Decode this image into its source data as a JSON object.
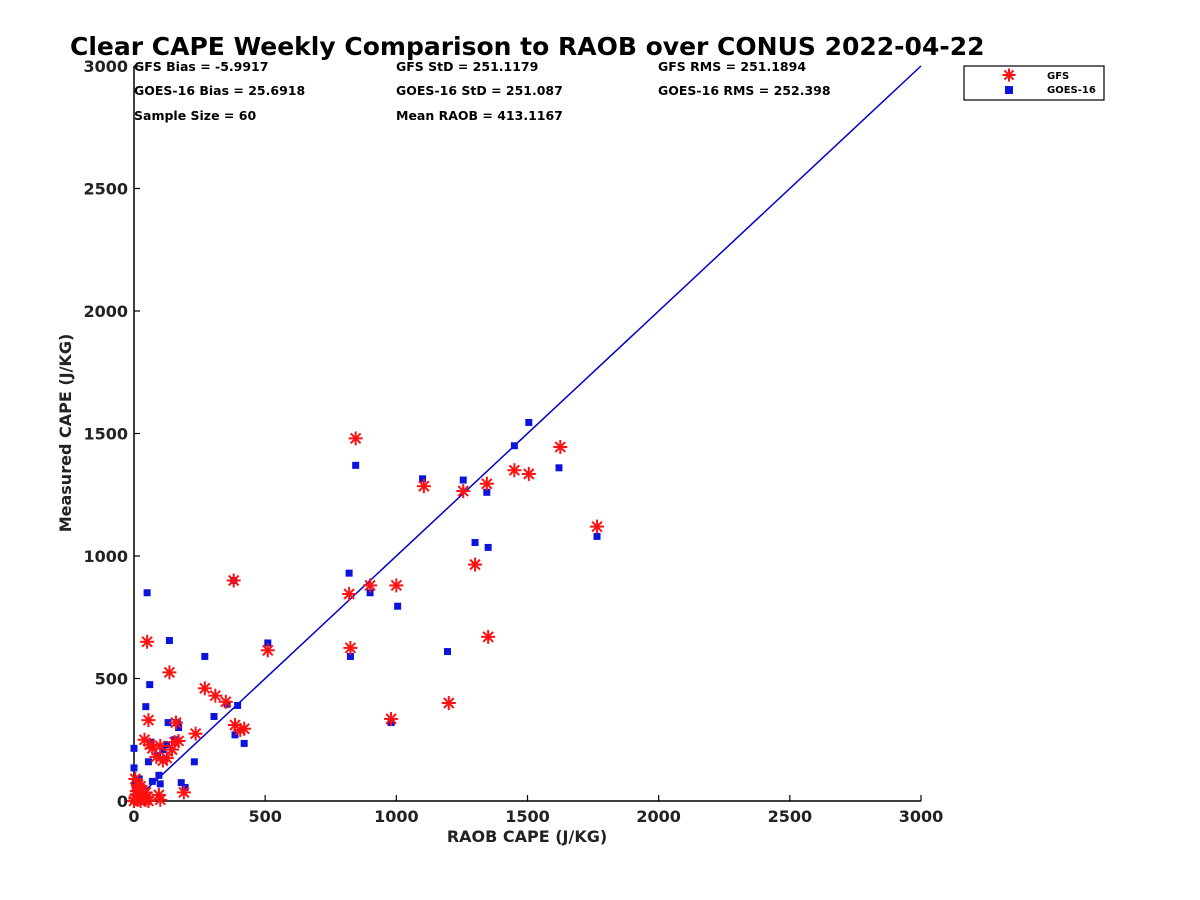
{
  "chart_data": {
    "type": "scatter",
    "title": "Clear CAPE Weekly Comparison to RAOB over CONUS 2022-04-22",
    "xlabel": "RAOB CAPE (J/KG)",
    "ylabel": "Measured CAPE (J/KG)",
    "xlim": [
      0,
      3000
    ],
    "ylim": [
      0,
      3000
    ],
    "xticks": [
      "0",
      "500",
      "1000",
      "1500",
      "2000",
      "2500",
      "3000"
    ],
    "yticks": [
      "0",
      "500",
      "1000",
      "1500",
      "2000",
      "2500",
      "3000"
    ],
    "grid": false,
    "legend_position": "top-right",
    "one_to_one_line": {
      "x": [
        0,
        3000
      ],
      "y": [
        0,
        3000
      ],
      "color": "#0000cc"
    },
    "stats": [
      "GFS Bias = -5.9917",
      "GFS StD = 251.1179",
      "GFS RMS = 251.1894",
      "GOES-16 Bias = 25.6918",
      "GOES-16 StD = 251.087",
      "GOES-16 RMS = 252.398",
      "Sample Size = 60",
      "Mean RAOB = 413.1167"
    ],
    "series": [
      {
        "name": "GFS",
        "marker": "asterisk",
        "color": "#ff1010",
        "points": [
          [
            0,
            0
          ],
          [
            5,
            10
          ],
          [
            10,
            25
          ],
          [
            15,
            5
          ],
          [
            20,
            30
          ],
          [
            25,
            0
          ],
          [
            35,
            15
          ],
          [
            45,
            5
          ],
          [
            55,
            0
          ],
          [
            30,
            20
          ],
          [
            5,
            90
          ],
          [
            15,
            65
          ],
          [
            10,
            40
          ],
          [
            40,
            250
          ],
          [
            50,
            650
          ],
          [
            55,
            330
          ],
          [
            60,
            230
          ],
          [
            70,
            215
          ],
          [
            85,
            180
          ],
          [
            100,
            225
          ],
          [
            110,
            165
          ],
          [
            125,
            175
          ],
          [
            135,
            525
          ],
          [
            145,
            210
          ],
          [
            155,
            240
          ],
          [
            160,
            320
          ],
          [
            170,
            245
          ],
          [
            190,
            35
          ],
          [
            235,
            275
          ],
          [
            270,
            460
          ],
          [
            310,
            430
          ],
          [
            350,
            405
          ],
          [
            380,
            900
          ],
          [
            385,
            310
          ],
          [
            420,
            295
          ],
          [
            405,
            290
          ],
          [
            510,
            615
          ],
          [
            820,
            845
          ],
          [
            825,
            625
          ],
          [
            845,
            1480
          ],
          [
            900,
            880
          ],
          [
            980,
            335
          ],
          [
            1000,
            880
          ],
          [
            1105,
            1285
          ],
          [
            1200,
            400
          ],
          [
            1255,
            1265
          ],
          [
            1300,
            965
          ],
          [
            1345,
            1295
          ],
          [
            1350,
            670
          ],
          [
            1450,
            1350
          ],
          [
            1505,
            1335
          ],
          [
            1625,
            1445
          ],
          [
            1765,
            1120
          ],
          [
            100,
            5
          ],
          [
            95,
            25
          ],
          [
            20,
            50
          ],
          [
            25,
            60
          ],
          [
            30,
            45
          ],
          [
            45,
            35
          ],
          [
            50,
            15
          ]
        ]
      },
      {
        "name": "GOES-16",
        "marker": "square",
        "color": "#0a14dc",
        "points": [
          [
            0,
            215
          ],
          [
            0,
            135
          ],
          [
            5,
            60
          ],
          [
            10,
            20
          ],
          [
            15,
            0
          ],
          [
            20,
            5
          ],
          [
            25,
            10
          ],
          [
            30,
            15
          ],
          [
            40,
            0
          ],
          [
            45,
            385
          ],
          [
            50,
            850
          ],
          [
            55,
            160
          ],
          [
            60,
            475
          ],
          [
            65,
            240
          ],
          [
            70,
            80
          ],
          [
            90,
            185
          ],
          [
            95,
            105
          ],
          [
            100,
            70
          ],
          [
            110,
            210
          ],
          [
            125,
            230
          ],
          [
            130,
            320
          ],
          [
            135,
            655
          ],
          [
            155,
            250
          ],
          [
            165,
            320
          ],
          [
            170,
            300
          ],
          [
            180,
            75
          ],
          [
            195,
            55
          ],
          [
            230,
            160
          ],
          [
            270,
            590
          ],
          [
            305,
            345
          ],
          [
            355,
            395
          ],
          [
            380,
            900
          ],
          [
            385,
            270
          ],
          [
            395,
            390
          ],
          [
            420,
            235
          ],
          [
            510,
            645
          ],
          [
            820,
            930
          ],
          [
            825,
            590
          ],
          [
            845,
            1370
          ],
          [
            900,
            850
          ],
          [
            980,
            320
          ],
          [
            1005,
            795
          ],
          [
            1100,
            1315
          ],
          [
            1195,
            610
          ],
          [
            1255,
            1310
          ],
          [
            1300,
            1055
          ],
          [
            1345,
            1260
          ],
          [
            1350,
            1035
          ],
          [
            1450,
            1450
          ],
          [
            1505,
            1545
          ],
          [
            1620,
            1360
          ],
          [
            1765,
            1080
          ],
          [
            10,
            5
          ],
          [
            15,
            30
          ],
          [
            25,
            45
          ],
          [
            35,
            20
          ],
          [
            5,
            75
          ],
          [
            20,
            90
          ],
          [
            8,
            12
          ],
          [
            12,
            3
          ]
        ]
      }
    ]
  }
}
